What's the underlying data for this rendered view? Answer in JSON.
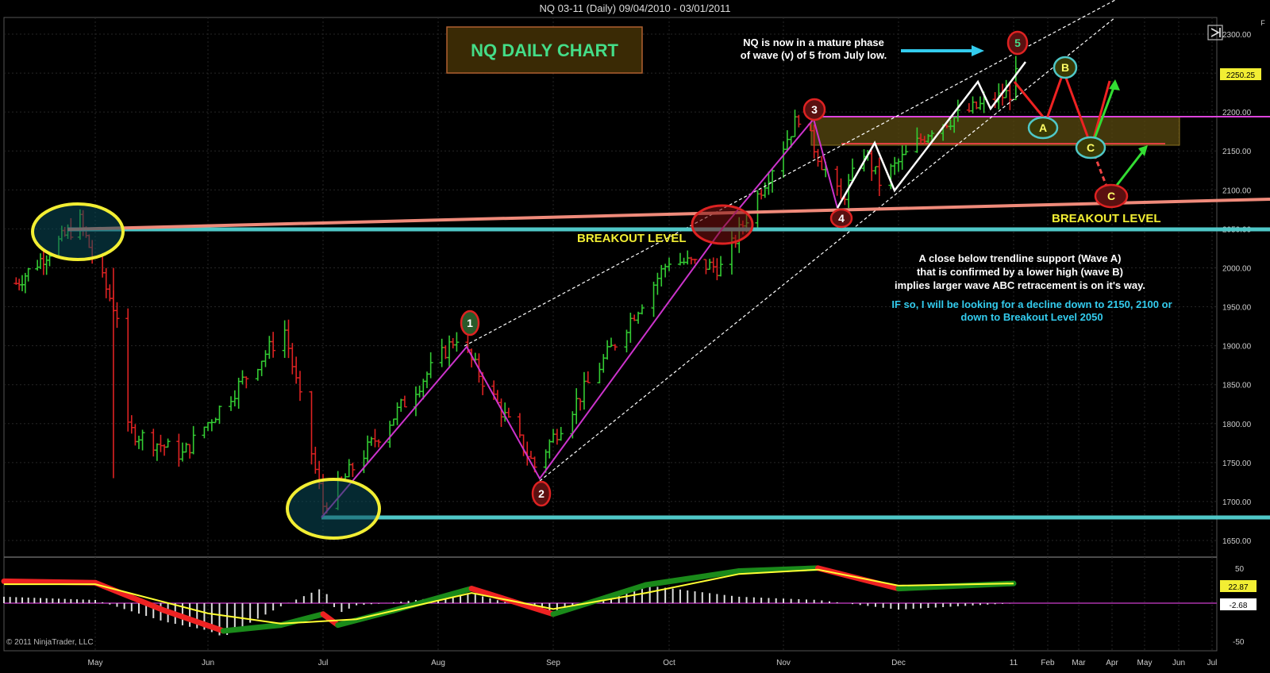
{
  "window": {
    "title": "NQ 03-11 (Daily)  09/04/2010 - 03/01/2011",
    "copyright": "© 2011 NinjaTrader, LLC"
  },
  "colors": {
    "background": "#000000",
    "up_bar": "#33cc33",
    "down_bar": "#dd2222",
    "trendline": "#e05a5a",
    "support": "#4fc7c7",
    "wave_line": "#cc33cc",
    "label_yellow": "#f2ee33",
    "note_cyan": "#33ccee",
    "macd_signal": "#ffff33",
    "zero_line": "#aa33aa"
  },
  "annotations": {
    "title_box": "NQ DAILY CHART",
    "top_note_line1": "NQ is now in a mature phase",
    "top_note_line2": "of wave (v) of 5 from July low.",
    "breakout_left": "BREAKOUT LEVEL",
    "breakout_right": "BREAKOUT LEVEL",
    "note1_line1": "A close below trendline support (Wave A)",
    "note1_line2": "that is confirmed by a lower high (wave B)",
    "note1_line3": "implies larger wave ABC retracement is on it's way.",
    "note2_line1": "IF so, I will be looking for a decline down to 2150, 2100 or",
    "note2_line2": "down to Breakout  Level 2050",
    "wave_labels": [
      "1",
      "2",
      "3",
      "4",
      "5",
      "A",
      "B",
      "C",
      "C"
    ]
  },
  "chart_data": [
    {
      "type": "ohlc",
      "title": "NQ 03-11 (Daily)  09/04/2010 - 03/01/2011",
      "x_tick_labels": [
        "May",
        "Jun",
        "Jul",
        "Aug",
        "Sep",
        "Oct",
        "Nov",
        "Dec",
        "11",
        "Feb",
        "Mar",
        "Apr",
        "May",
        "Jun",
        "Jul"
      ],
      "y_tick_labels": [
        "2300.00",
        "2250.00",
        "2200.00",
        "2150.00",
        "2100.00",
        "2050.00",
        "2000.00",
        "1950.00",
        "1900.00",
        "1850.00",
        "1800.00",
        "1750.00",
        "1700.00",
        "1650.00"
      ],
      "ylim": [
        1640,
        2310
      ],
      "last_price": "2250.25",
      "key_points": [
        {
          "label": "April high",
          "date": "2010-04-26",
          "value": 2060
        },
        {
          "label": "July low",
          "date": "2010-07-01",
          "value": 1695
        },
        {
          "label": "1",
          "date": "2010-08-06",
          "value": 1912
        },
        {
          "label": "2",
          "date": "2010-08-27",
          "value": 1745
        },
        {
          "label": "3",
          "date": "2010-11-05",
          "value": 2195
        },
        {
          "label": "4",
          "date": "2010-11-16",
          "value": 2085
        },
        {
          "label": "5",
          "date": "2011-01-03",
          "value": 2270
        }
      ],
      "levels": [
        {
          "name": "Breakout Level",
          "value": 2055
        },
        {
          "name": "July low support",
          "value": 1693
        },
        {
          "name": "Trendline",
          "from": [
            "2010-04-26",
            2060
          ],
          "to": [
            "2011-07-31",
            2096
          ]
        }
      ],
      "projection": [
        {
          "label": "A",
          "value": 2185
        },
        {
          "label": "B",
          "value": 2255
        },
        {
          "label": "C",
          "value": 2155
        },
        {
          "label": "C",
          "value": 2092
        }
      ],
      "grid": true
    },
    {
      "type": "macd",
      "y_tick_labels": [
        "50",
        "-50"
      ],
      "value_labels": [
        "22.87",
        "-2.68"
      ],
      "macd": [
        {
          "date": "2010-04-01",
          "value": 30
        },
        {
          "date": "2010-05-01",
          "value": 28
        },
        {
          "date": "2010-05-20",
          "value": -10
        },
        {
          "date": "2010-06-05",
          "value": -38
        },
        {
          "date": "2010-06-20",
          "value": -30
        },
        {
          "date": "2010-07-01",
          "value": -15
        },
        {
          "date": "2010-07-05",
          "value": -30
        },
        {
          "date": "2010-07-20",
          "value": -10
        },
        {
          "date": "2010-08-10",
          "value": 20
        },
        {
          "date": "2010-09-01",
          "value": -15
        },
        {
          "date": "2010-09-25",
          "value": 25
        },
        {
          "date": "2010-10-20",
          "value": 44
        },
        {
          "date": "2010-11-10",
          "value": 48
        },
        {
          "date": "2010-12-01",
          "value": 20
        },
        {
          "date": "2011-01-01",
          "value": 27
        }
      ],
      "signal": [
        {
          "date": "2010-04-01",
          "value": 26
        },
        {
          "date": "2010-05-01",
          "value": 26
        },
        {
          "date": "2010-06-01",
          "value": -14
        },
        {
          "date": "2010-06-20",
          "value": -28
        },
        {
          "date": "2010-07-10",
          "value": -22
        },
        {
          "date": "2010-08-10",
          "value": 14
        },
        {
          "date": "2010-09-01",
          "value": -8
        },
        {
          "date": "2010-09-25",
          "value": 14
        },
        {
          "date": "2010-10-20",
          "value": 40
        },
        {
          "date": "2010-11-10",
          "value": 46
        },
        {
          "date": "2010-12-01",
          "value": 24
        },
        {
          "date": "2011-01-01",
          "value": 27
        }
      ],
      "histogram_zero": 0
    }
  ]
}
